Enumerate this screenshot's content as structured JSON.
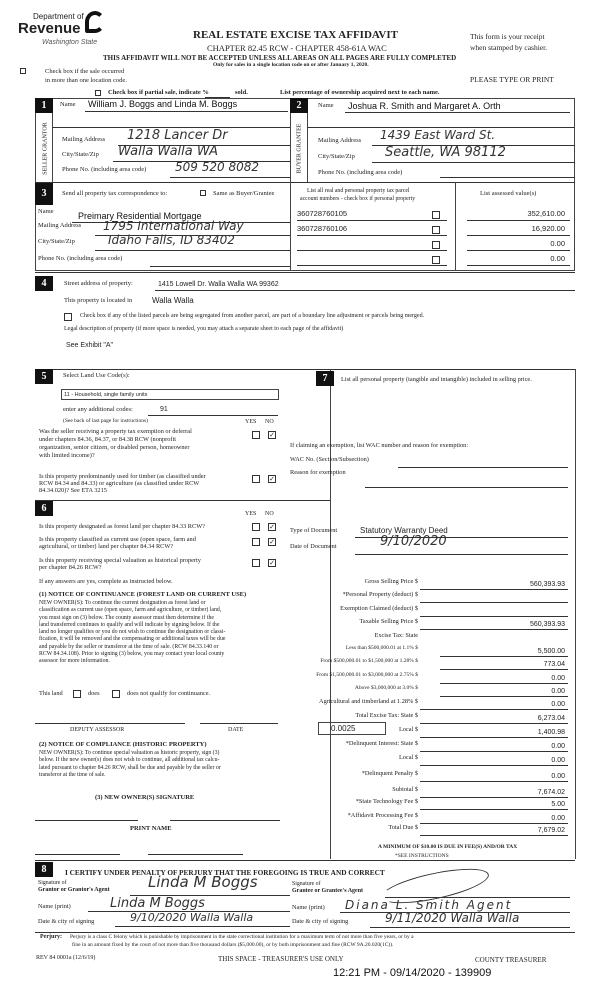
{
  "header": {
    "dept": "Department of",
    "revenue": "Revenue",
    "state": "Washington State",
    "title": "REAL ESTATE EXCISE TAX AFFIDAVIT",
    "chapter": "CHAPTER 82.45 RCW - CHAPTER 458-61A WAC",
    "notice": "THIS AFFIDAVIT WILL NOT BE ACCEPTED UNLESS ALL AREAS ON ALL PAGES ARE FULLY COMPLETED",
    "only": "Only for sales in a single location code on or after January 1, 2020.",
    "receipt1": "This form is your receipt",
    "receipt2": "when stamped by cashier.",
    "multi1": "Check box if the sale occurred",
    "multi2": "in more than one location code.",
    "type_print": "PLEASE TYPE OR PRINT",
    "partial": "Check box if partial sale, indicate %",
    "sold": "sold.",
    "ownership": "List percentage of ownership acquired next to each name."
  },
  "s1": {
    "num": "1",
    "side": "SELLER GRANTOR",
    "name_label": "Name",
    "name": "William J. Boggs and Linda M. Boggs",
    "addr_label": "Mailing Address",
    "addr": "1218 Lancer Dr",
    "city_label": "City/State/Zip",
    "city": "Walla Walla WA",
    "phone_label": "Phone No. (including area code)",
    "phone": "509 520 8082"
  },
  "s2": {
    "num": "2",
    "side": "BUYER GRANTEE",
    "name_label": "Name",
    "name": "Joshua R. Smith and Margaret A. Orth",
    "addr_label": "Mailing Address",
    "addr": "1439 East Ward St.",
    "city_label": "City/State/Zip",
    "city": "Seattle, WA 98112",
    "phone_label": "Phone No. (including area code)"
  },
  "s3": {
    "num": "3",
    "send": "Send all property tax correspondence to:",
    "same": "Same as Buyer/Grantee",
    "name_label": "Name",
    "name": "Preimary Residential Mortgage",
    "addr_label": "Mailing Address",
    "addr": "1795 International Way",
    "city_label": "City/State/Zip",
    "city": "Idaho Falls, ID 83402",
    "phone_label": "Phone No. (including area code)",
    "parcel_h1": "List all real and personal property tax parcel",
    "parcel_h2": "account numbers - check box if personal property",
    "value_h": "List assessed value(s)",
    "parcels": [
      {
        "no": "360728760105",
        "value": "352,610.00"
      },
      {
        "no": "360728760106",
        "value": "16,920.00"
      },
      {
        "no": "",
        "value": "0.00"
      },
      {
        "no": "",
        "value": "0.00"
      }
    ]
  },
  "s4": {
    "num": "4",
    "street_label": "Street address of property:",
    "street": "1415 Lowell Dr. Walla Walla WA  99362",
    "located_label": "This property is located in",
    "located": "Walla Walla",
    "segregated": "Check box if any of the listed parcels are being segregated from another parcel, are part of a boundary line adjustment or parcels being merged.",
    "legal": "Legal description of property (if more space is needed, you may attach a separate sheet to each page of the affidavit)",
    "legal_value": "See Exhibit \"A\""
  },
  "s5": {
    "num": "5",
    "select": "Select Land Use Code(s):",
    "code": "11 - Household, single family units",
    "additional_label": "enter any additional codes:",
    "additional": "91",
    "see_back": "(See back of last page for instructions)",
    "yes": "YES",
    "no": "NO",
    "q1": [
      "Was the seller receiving a property tax exemption or deferral",
      "under chapters 84.36, 84.37, or 84.38 RCW (nonprofit",
      "organization, senior citizen, or disabled person, homeowner",
      "with limited income)?"
    ],
    "q2": [
      "Is this property predominantly used for timber (as classified under",
      "RCW 84.34 and 84.33) or agriculture (as classified under RCW",
      "84.34.020)? See ETA 3215"
    ]
  },
  "s6": {
    "num": "6",
    "yes": "YES",
    "no": "NO",
    "q1": "Is this property designated as forest land per chapter 84.33 RCW?",
    "q2": [
      "Is this property classified as current use (open space, farm and",
      "agricultural, or timber) land per chapter 84.34 RCW?"
    ],
    "q3": [
      "Is this property receiving special valuation as historical property",
      "per chapter 84.26 RCW?"
    ],
    "if_yes": "If any answers are yes, complete as instructed below.",
    "n1_title": "(1) NOTICE OF CONTINUANCE (FOREST LAND OR CURRENT USE)",
    "n1": [
      "NEW OWNER(S): To continue the current designation as forest land or",
      "classification as current use (open space, farm and agriculture, or timber) land,",
      "you must sign on (3) below. The county assessor must then determine if the",
      "land transferred continues to qualify and will indicate by signing below. If the",
      "land no longer qualifies or you do not wish to continue the designation or classi-",
      "fication, it will be removed and the compensating or additional taxes will be due",
      "and payable by the seller or transferor at the time of sale. (RCW 84.33.140 or",
      "RCW 84.34.108). Prior to signing (3) below, you may contact your local county",
      "assessor for more information."
    ],
    "this_land": "This land",
    "does": "does",
    "does_not": "does not qualify for continuance.",
    "deputy": "DEPUTY ASSESSOR",
    "date": "DATE",
    "n2_title": "(2) NOTICE OF COMPLIANCE (HISTORIC PROPERTY)",
    "n2": [
      "NEW OWNER(S): To continue special valuation as historic property, sign (3)",
      "below. If the new owner(s) does not wish to continue, all additional tax calcu-",
      "lated pursuant to chapter 84.26 RCW, shall be due and payable by the seller or",
      "transferor at the time of sale."
    ],
    "n3_title": "(3) NEW OWNER(S) SIGNATURE",
    "print_name": "PRINT NAME"
  },
  "s7": {
    "num": "7",
    "list": "List all personal property (tangible and intangible) included in selling price.",
    "claim": "If claiming an exemption, list WAC number and reason for exemption:",
    "wac": "WAC No. (Section/Subsection)",
    "reason": "Reason for exemption",
    "doc_type_label": "Type of Document",
    "doc_type": "Statutory Warranty Deed",
    "doc_date_label": "Date of Document",
    "doc_date": "9/10/2020",
    "local_rate": "0.0025",
    "tax_lines": [
      {
        "label": "Gross Selling Price  $",
        "value": "560,393.93"
      },
      {
        "label": "*Personal Property (deduct)  $",
        "value": ""
      },
      {
        "label": "Exemption Claimed (deduct)  $",
        "value": ""
      },
      {
        "label": "Taxable Selling Price  $",
        "value": "560,393.93"
      },
      {
        "label": "Excise Tax: State",
        "value": null
      },
      {
        "label": "Less than $500,000.01 at 1.1%  $",
        "value": "5,500.00",
        "small": true
      },
      {
        "label": "From $500,000.01 to $1,500,000 at 1.28%  $",
        "value": "773.04",
        "small": true
      },
      {
        "label": "From $1,500,000.01 to $3,000,000 at 2.75%  $",
        "value": "0.00",
        "small": true
      },
      {
        "label": "Above $3,000,000 at 3.0%  $",
        "value": "0.00",
        "small": true
      },
      {
        "label": "Agricultural and timberland at 1.28%  $",
        "value": "0.00"
      },
      {
        "label": "Total Excise Tax: State  $",
        "value": "6,273.04"
      },
      {
        "label": "Local  $",
        "value": "1,400.98"
      },
      {
        "label": "*Delinquent Interest: State  $",
        "value": "0.00"
      },
      {
        "label": "Local  $",
        "value": "0.00"
      },
      {
        "label": "*Delinquent Penalty  $",
        "value": "0.00"
      },
      {
        "label": "Subtotal  $",
        "value": "7,674.02"
      },
      {
        "label": "*State Technology Fee  $",
        "value": "5.00"
      },
      {
        "label": "*Affidavit Processing Fee  $",
        "value": "0.00"
      },
      {
        "label": "Total Due  $",
        "value": "7,679.02"
      }
    ],
    "minimum": "A MINIMUM OF $10.00 IS DUE IN FEE(S) AND/OR TAX",
    "see_instr": "*SEE INSTRUCTIONS"
  },
  "s8": {
    "num": "8",
    "certify": "I CERTIFY UNDER PENALTY OF PERJURY THAT THE FOREGOING IS TRUE AND CORRECT",
    "sig_grantor1": "Signature of",
    "sig_grantor2": "Grantor or Grantor's Agent",
    "grantor_sig": "Linda M Boggs",
    "name_print": "Name (print)",
    "grantor_name": "Linda M Boggs",
    "date_city": "Date & city of signing",
    "grantor_date": "9/10/2020 Walla Walla",
    "sig_grantee1": "Signature of",
    "sig_grantee2": "Grantee or Grantee's Agent",
    "grantee_name": "Diana L. Smith Agent",
    "grantee_date": "9/11/2020 Walla Walla",
    "perjury_b": "Perjury:",
    "perjury": "Perjury is a class C felony which is punishable by imprisonment in the state correctional institution for a maximum term of not more than five years, or by a",
    "perjury2": "fine in an amount fixed by the court of not more than five thousand dollars ($5,000.00), or by both imprisonment and fine (RCW 9A.20.020(1C))."
  },
  "footer": {
    "rev": "REV 84 0001a (12/6/19)",
    "treasurer_space": "THIS SPACE - TREASURER'S USE ONLY",
    "county": "COUNTY TREASURER",
    "stamp": "12:21 PM - 09/14/2020 - 139909"
  }
}
